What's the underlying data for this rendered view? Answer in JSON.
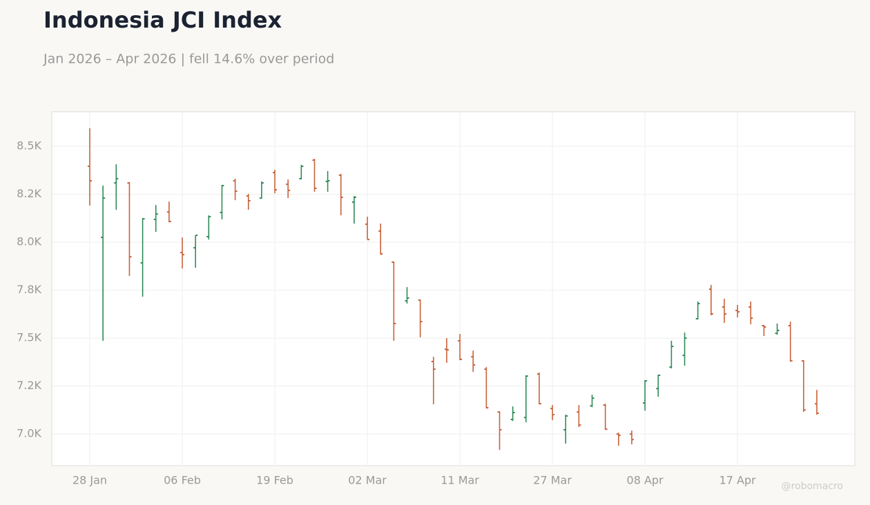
{
  "chart_data": {
    "type": "ohlc",
    "title": "Indonesia JCI Index",
    "subtitle": "Jan 2026 – Apr 2026 | fell 14.6% over period",
    "watermark": "@robomacro",
    "categories": [
      "28 Jan",
      null,
      null,
      null,
      null,
      null,
      null,
      "06 Feb",
      null,
      null,
      null,
      null,
      null,
      null,
      "19 Feb",
      null,
      null,
      null,
      null,
      null,
      null,
      "02 Mar",
      null,
      null,
      null,
      null,
      null,
      null,
      "11 Mar",
      null,
      null,
      null,
      null,
      null,
      null,
      "27 Mar",
      null,
      null,
      null,
      null,
      null,
      null,
      "08 Apr",
      null,
      null,
      null,
      null,
      null,
      null,
      "17 Apr",
      null,
      null,
      null,
      null,
      null,
      null
    ],
    "open": [
      8396,
      8025,
      8309,
      8309,
      7892,
      8119,
      8158,
      7946,
      7971,
      8029,
      8155,
      8320,
      8241,
      8230,
      8363,
      8302,
      8331,
      8428,
      8317,
      8349,
      8209,
      8094,
      8058,
      7896,
      7694,
      7698,
      7378,
      7442,
      7486,
      7403,
      7338,
      7115,
      7076,
      7086,
      7313,
      7133,
      7022,
      7115,
      7147,
      7151,
      7000,
      7000,
      7162,
      7237,
      7349,
      7410,
      7601,
      7755,
      7662,
      7644,
      7662,
      7565,
      7525,
      7565,
      7381,
      7158
    ],
    "high": [
      8594,
      8295,
      8406,
      8313,
      8126,
      8194,
      8212,
      8025,
      8036,
      8140,
      8299,
      8331,
      8252,
      8317,
      8378,
      8327,
      8403,
      8435,
      8371,
      8356,
      8241,
      8133,
      8097,
      7899,
      7766,
      7701,
      7403,
      7500,
      7522,
      7435,
      7349,
      7119,
      7144,
      7306,
      7320,
      7151,
      7101,
      7151,
      7205,
      7158,
      7007,
      7018,
      7281,
      7309,
      7486,
      7529,
      7691,
      7777,
      7705,
      7673,
      7691,
      7568,
      7576,
      7586,
      7385,
      7230
    ],
    "low": [
      8191,
      7486,
      8169,
      7824,
      7716,
      8054,
      8104,
      7863,
      7867,
      8014,
      8119,
      8219,
      8169,
      8227,
      8255,
      8230,
      8327,
      8263,
      8263,
      8140,
      8097,
      8014,
      7935,
      7486,
      7680,
      7504,
      7155,
      7371,
      7385,
      7324,
      7133,
      6917,
      7068,
      7061,
      7155,
      7072,
      6950,
      7036,
      7140,
      7022,
      6939,
      6946,
      7122,
      7194,
      7342,
      7356,
      7597,
      7619,
      7579,
      7608,
      7572,
      7511,
      7518,
      7378,
      7115,
      7101
    ],
    "close": [
      8320,
      8230,
      8331,
      7924,
      8122,
      8147,
      8108,
      7935,
      8036,
      8133,
      8295,
      8266,
      8216,
      8309,
      8273,
      8270,
      8396,
      8281,
      8320,
      8234,
      8234,
      8014,
      7939,
      7576,
      7709,
      7586,
      7338,
      7439,
      7389,
      7360,
      7137,
      7022,
      7112,
      7302,
      7158,
      7101,
      7094,
      7047,
      7187,
      7025,
      6993,
      6971,
      7277,
      7306,
      7457,
      7500,
      7680,
      7626,
      7626,
      7637,
      7604,
      7558,
      7540,
      7381,
      7126,
      7108
    ],
    "up_color": "#2e8b57",
    "down_color": "#c8613a",
    "ylim": [
      6835,
      8680
    ],
    "yticks": [
      {
        "value": 7000,
        "label": "7.0K"
      },
      {
        "value": 7250,
        "label": "7.2K"
      },
      {
        "value": 7500,
        "label": "7.5K"
      },
      {
        "value": 7750,
        "label": "7.8K"
      },
      {
        "value": 8000,
        "label": "8.0K"
      },
      {
        "value": 8250,
        "label": "8.2K"
      },
      {
        "value": 8500,
        "label": "8.5K"
      }
    ],
    "grid": true
  }
}
